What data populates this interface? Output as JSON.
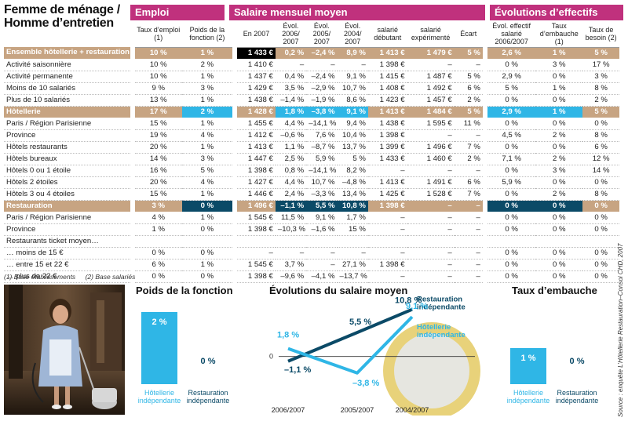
{
  "title": "Femme de ménage / Homme d’entretien",
  "sections": {
    "emploi": "Emploi",
    "salaire": "Salaire mensuel moyen",
    "effectifs": "Évolutions d’effectifs"
  },
  "columns": {
    "taux_emploi": "Taux d’emploi (1)",
    "poids_fonction": "Poids de la fonction (2)",
    "en_2007": "En 2007",
    "evol_2006": "Évol. 2006/ 2007",
    "evol_2005": "Évol. 2005/ 2007",
    "evol_2004": "Évol. 2004/ 2007",
    "salarie_debutant": "salarié débutant",
    "salarie_experimente": "salarié expérimenté",
    "ecart": "Écart",
    "evol_effectif": "Évol. effectif salarié 2006/2007",
    "taux_embauche": "Taux d’embauche (1)",
    "taux_besoin": "Taux de besoin (2)"
  },
  "rows": [
    {
      "label": "Ensemble hôtellerie + restauration",
      "hl": true,
      "v": [
        "10 %",
        "1 %",
        "1 433 €",
        "0,2 %",
        "–2,4 %",
        "8,9 %",
        "1 413 €",
        "1 479 €",
        "5 %",
        "2,6 %",
        "1 %",
        "5 %"
      ]
    },
    {
      "label": "Activité saisonnière",
      "v": [
        "10 %",
        "2 %",
        "1 410 €",
        "–",
        "–",
        "–",
        "1 398 €",
        "–",
        "–",
        "0 %",
        "3 %",
        "17 %"
      ]
    },
    {
      "label": "Activité permanente",
      "v": [
        "10 %",
        "1 %",
        "1 437 €",
        "0,4 %",
        "–2,4 %",
        "9,1 %",
        "1 415 €",
        "1 487 €",
        "5 %",
        "2,9 %",
        "0 %",
        "3 %"
      ]
    },
    {
      "label": "Moins de 10 salariés",
      "v": [
        "9 %",
        "3 %",
        "1 429 €",
        "3,5 %",
        "–2,9 %",
        "10,7 %",
        "1 408 €",
        "1 492 €",
        "6 %",
        "5 %",
        "1 %",
        "8 %"
      ]
    },
    {
      "label": "Plus de 10 salariés",
      "v": [
        "13 %",
        "1 %",
        "1 438 €",
        "–1,4 %",
        "–1,9 %",
        "8,6 %",
        "1 423 €",
        "1 457 €",
        "2 %",
        "0 %",
        "0 %",
        "2 %"
      ]
    },
    {
      "label": "Hôtellerie",
      "hl": true,
      "v": [
        "17 %",
        "2 %",
        "1 428 €",
        "1,8 %",
        "–3,8 %",
        "9,1 %",
        "1 413 €",
        "1 484 €",
        "5 %",
        "2,9 %",
        "1 %",
        "5 %"
      ]
    },
    {
      "label": "Paris / Région Parisienne",
      "v": [
        "15 %",
        "1 %",
        "1 455 €",
        "4,4 %",
        "–14,1 %",
        "9,4 %",
        "1 438 €",
        "1 595 €",
        "11 %",
        "0 %",
        "0 %",
        "0 %"
      ]
    },
    {
      "label": "Province",
      "v": [
        "19 %",
        "4 %",
        "1 412 €",
        "–0,6 %",
        "7,6 %",
        "10,4 %",
        "1 398 €",
        "–",
        "–",
        "4,5 %",
        "2 %",
        "8 %"
      ]
    },
    {
      "label": "Hôtels restaurants",
      "v": [
        "20 %",
        "1 %",
        "1 413 €",
        "1,1 %",
        "–8,7 %",
        "13,7 %",
        "1 399 €",
        "1 496 €",
        "7 %",
        "0 %",
        "0 %",
        "6 %"
      ]
    },
    {
      "label": "Hôtels bureaux",
      "v": [
        "14 %",
        "3 %",
        "1 447 €",
        "2,5 %",
        "5,9 %",
        "5 %",
        "1 433 €",
        "1 460 €",
        "2 %",
        "7,1 %",
        "2 %",
        "12 %"
      ]
    },
    {
      "label": "Hôtels 0 ou 1 étoile",
      "v": [
        "16 %",
        "5 %",
        "1 398 €",
        "0,8 %",
        "–14,1 %",
        "8,2 %",
        "–",
        "–",
        "–",
        "0 %",
        "3 %",
        "14 %"
      ]
    },
    {
      "label": "Hôtels 2 étoiles",
      "v": [
        "20 %",
        "4 %",
        "1 427 €",
        "4,4 %",
        "10,7 %",
        "–4,8 %",
        "1 413 €",
        "1 491 €",
        "6 %",
        "5,9 %",
        "0 %",
        "0 %"
      ]
    },
    {
      "label": "Hôtels 3 ou 4 étoiles",
      "v": [
        "15 %",
        "1 %",
        "1 446 €",
        "2,4 %",
        "–3,3 %",
        "13,4 %",
        "1 425 €",
        "1 528 €",
        "7 %",
        "0 %",
        "2 %",
        "8 %"
      ]
    },
    {
      "label": "Restauration",
      "hl": true,
      "v": [
        "3 %",
        "0 %",
        "1 496 €",
        "–1,1 %",
        "5,5 %",
        "10,8 %",
        "1 398 €",
        "–",
        "–",
        "0 %",
        "0 %",
        "0 %"
      ]
    },
    {
      "label": "Paris / Région Parisienne",
      "v": [
        "4 %",
        "1 %",
        "1 545 €",
        "11,5 %",
        "9,1 %",
        "1,7 %",
        "–",
        "–",
        "–",
        "0 %",
        "0 %",
        "0 %"
      ]
    },
    {
      "label": "Province",
      "v": [
        "1 %",
        "0 %",
        "1 398 €",
        "–10,3 %",
        "–1,6 %",
        "15 %",
        "–",
        "–",
        "–",
        "0 %",
        "0 %",
        "0 %"
      ]
    },
    {
      "label": "Restaurants ticket moyen…",
      "v": [
        "",
        "",
        "",
        "",
        "",
        "",
        "",
        "",
        "",
        "",
        "",
        ""
      ]
    },
    {
      "label": "… moins de 15 €",
      "v": [
        "0 %",
        "0 %",
        "–",
        "–",
        "–",
        "–",
        "–",
        "–",
        "–",
        "0 %",
        "0 %",
        "0 %"
      ]
    },
    {
      "label": "… entre 15 et 22 €",
      "v": [
        "6 %",
        "1 %",
        "1 545 €",
        "3,7 %",
        "–",
        "27,1 %",
        "1 398 €",
        "–",
        "–",
        "0 %",
        "0 %",
        "0 %"
      ]
    },
    {
      "label": "… plus de 22 €",
      "v": [
        "0 %",
        "0 %",
        "1 398 €",
        "–9,6 %",
        "–4,1 %",
        "–13,7 %",
        "–",
        "–",
        "–",
        "0 %",
        "0 %",
        "0 %"
      ]
    }
  ],
  "footnotes": [
    "(1) Base établissements",
    "(2) Base salariés"
  ],
  "chart_data": [
    {
      "type": "bar",
      "title": "Poids de la fonction",
      "categories": [
        "Hôtellerie indépendante",
        "Restauration indépendante"
      ],
      "values": [
        2,
        0
      ],
      "value_labels": [
        "2 %",
        "0 %"
      ],
      "colors": [
        "#2fb6e6",
        "#0b4a67"
      ]
    },
    {
      "type": "line",
      "title": "Évolutions du salaire moyen",
      "x": [
        "2006/2007",
        "2005/2007",
        "2004/2007"
      ],
      "series": [
        {
          "name": "Restauration indépendante",
          "values": [
            -1.1,
            5.5,
            10.8
          ],
          "labels": [
            "–1,1 %",
            "5,5 %",
            "10,8 %"
          ],
          "color": "#0b4a67"
        },
        {
          "name": "Hôtellerie indépendante",
          "values": [
            1.8,
            -3.8,
            9.1
          ],
          "labels": [
            "1,8 %",
            "–3,8 %",
            "9,1 %"
          ],
          "color": "#2fb6e6"
        }
      ],
      "baseline_label": "0"
    },
    {
      "type": "bar",
      "title": "Taux d’embauche",
      "categories": [
        "Hôtellerie indépendante",
        "Restauration indépendante"
      ],
      "values": [
        1,
        0
      ],
      "value_labels": [
        "1 %",
        "0 %"
      ],
      "colors": [
        "#2fb6e6",
        "#0b4a67"
      ]
    }
  ],
  "source": "Source : enquête L’Hôtellerie Restauration–Consoi CHD, 2007",
  "colors": {
    "magenta": "#c0317d",
    "tan": "#c7a482",
    "cyan": "#2fb6e6",
    "navy": "#0b4a67"
  }
}
